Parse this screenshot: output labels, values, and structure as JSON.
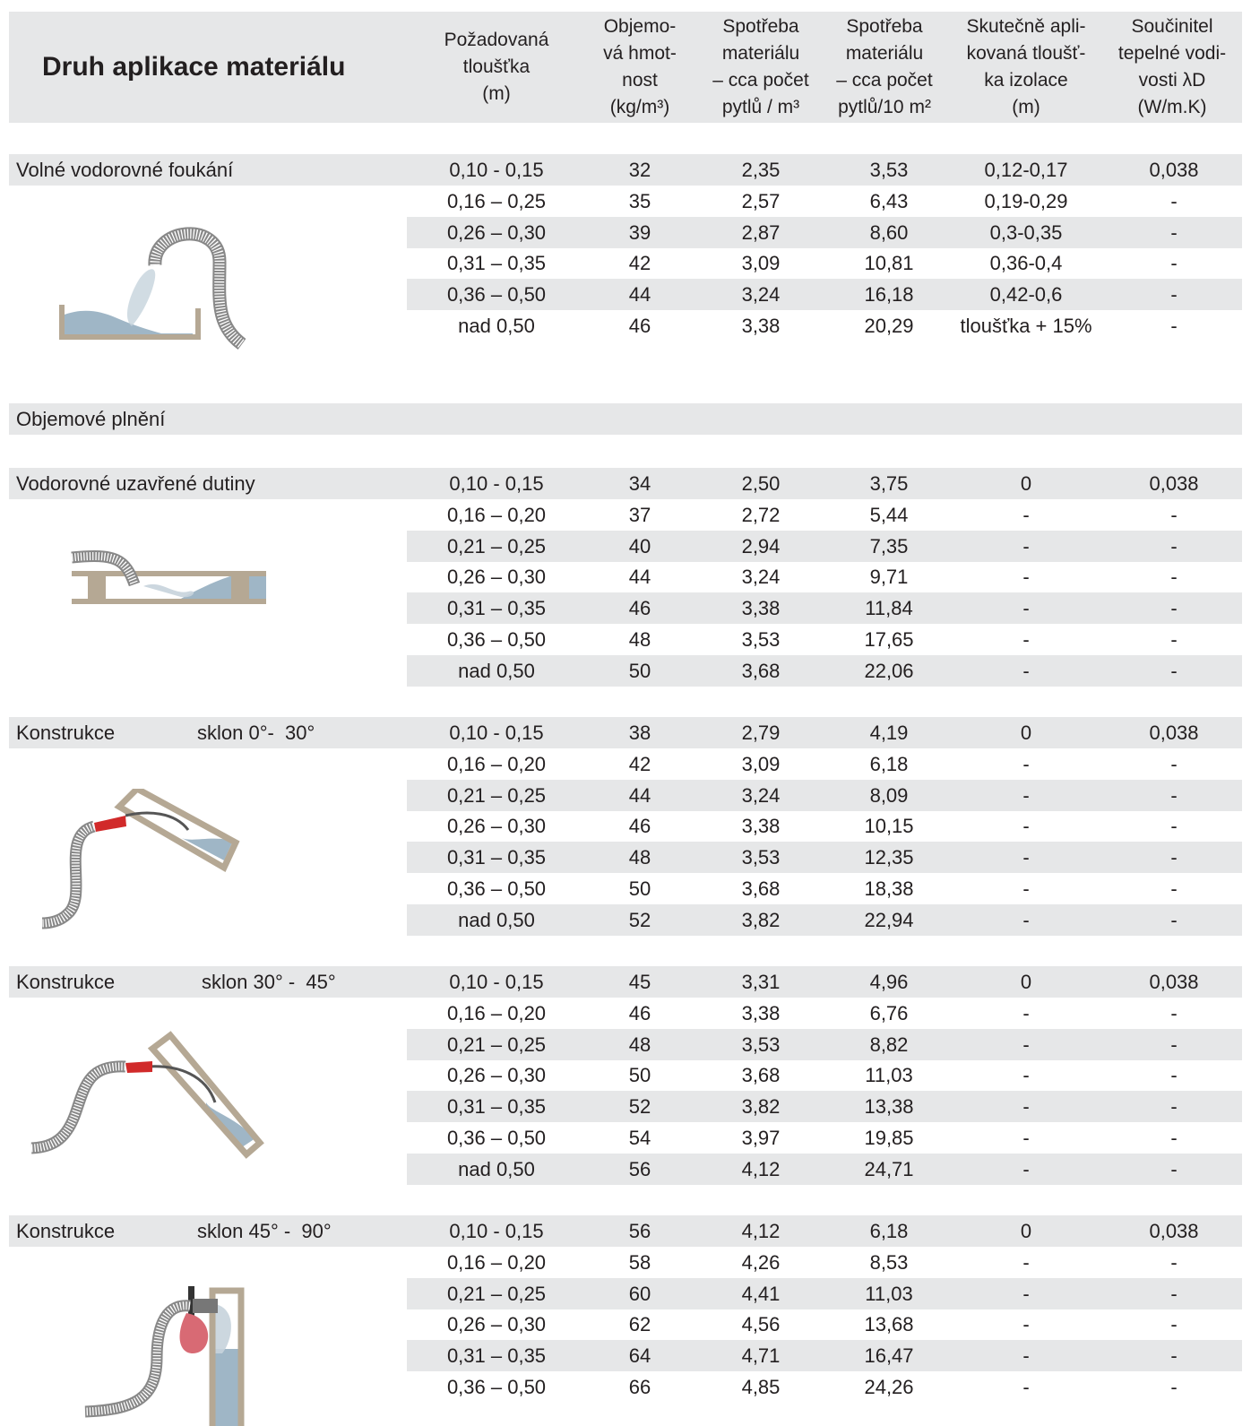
{
  "header": {
    "title": "Druh aplikace materiálu",
    "columns": [
      "Požadovaná\ntloušťka\n(m)",
      "Objemo-\nvá hmot-\nnost\n(kg/m³)",
      "Spotřeba\nmateriálu\n– cca počet\npytlů / m³",
      "Spotřeba\nmateriálu\n– cca počet\npytlů/10 m²",
      "Skutečně apli-\nkovaná tloušť-\nka izolace\n(m)",
      "Součinitel\ntepelné vodi-\nvosti  λD\n(W/m.K)"
    ]
  },
  "sections": [
    {
      "label": "Volné vodorovné foukání",
      "sub": "",
      "illustration": "horizontal-open-blowing-illustration",
      "rows": [
        [
          "0,10 - 0,15",
          "32",
          "2,35",
          "3,53",
          "0,12-0,17",
          "0,038"
        ],
        [
          "0,16 – 0,25",
          "35",
          "2,57",
          "6,43",
          "0,19-0,29",
          "-"
        ],
        [
          "0,26 – 0,30",
          "39",
          "2,87",
          "8,60",
          "0,3-0,35",
          "-"
        ],
        [
          "0,31 – 0,35",
          "42",
          "3,09",
          "10,81",
          "0,36-0,4",
          "-"
        ],
        [
          "0,36 – 0,50",
          "44",
          "3,24",
          "16,18",
          "0,42-0,6",
          "-"
        ],
        [
          "nad 0,50",
          "46",
          "3,38",
          "20,29",
          "tloušťka + 15%",
          "-"
        ]
      ]
    },
    {
      "label": "Objemové plnění",
      "sub": "",
      "rows": []
    },
    {
      "label": "Vodorovné uzavřené dutiny",
      "sub": "",
      "illustration": "horizontal-closed-cavity-illustration",
      "rows": [
        [
          "0,10 - 0,15",
          "34",
          "2,50",
          "3,75",
          "0",
          "0,038"
        ],
        [
          "0,16 – 0,20",
          "37",
          "2,72",
          "5,44",
          "-",
          "-"
        ],
        [
          "0,21 – 0,25",
          "40",
          "2,94",
          "7,35",
          "-",
          "-"
        ],
        [
          "0,26 – 0,30",
          "44",
          "3,24",
          "9,71",
          "-",
          "-"
        ],
        [
          "0,31 – 0,35",
          "46",
          "3,38",
          "11,84",
          "-",
          "-"
        ],
        [
          "0,36 – 0,50",
          "48",
          "3,53",
          "17,65",
          "-",
          "-"
        ],
        [
          "nad 0,50",
          "50",
          "3,68",
          "22,06",
          "-",
          "-"
        ]
      ]
    },
    {
      "label": "Konstrukce",
      "sub": "sklon 0°-  30°",
      "illustration": "slope-0-30-illustration",
      "rows": [
        [
          "0,10 - 0,15",
          "38",
          "2,79",
          "4,19",
          "0",
          "0,038"
        ],
        [
          "0,16 – 0,20",
          "42",
          "3,09",
          "6,18",
          "-",
          "-"
        ],
        [
          "0,21 – 0,25",
          "44",
          "3,24",
          "8,09",
          "-",
          "-"
        ],
        [
          "0,26 – 0,30",
          "46",
          "3,38",
          "10,15",
          "-",
          "-"
        ],
        [
          "0,31 – 0,35",
          "48",
          "3,53",
          "12,35",
          "-",
          "-"
        ],
        [
          "0,36 – 0,50",
          "50",
          "3,68",
          "18,38",
          "-",
          "-"
        ],
        [
          "nad 0,50",
          "52",
          "3,82",
          "22,94",
          "-",
          "-"
        ]
      ]
    },
    {
      "label": "Konstrukce",
      "sub": "sklon 30° -  45°",
      "illustration": "slope-30-45-illustration",
      "rows": [
        [
          "0,10 - 0,15",
          "45",
          "3,31",
          "4,96",
          "0",
          "0,038"
        ],
        [
          "0,16 – 0,20",
          "46",
          "3,38",
          "6,76",
          "-",
          "-"
        ],
        [
          "0,21 – 0,25",
          "48",
          "3,53",
          "8,82",
          "-",
          "-"
        ],
        [
          "0,26 – 0,30",
          "50",
          "3,68",
          "11,03",
          "-",
          "-"
        ],
        [
          "0,31 – 0,35",
          "52",
          "3,82",
          "13,38",
          "-",
          "-"
        ],
        [
          "0,36 – 0,50",
          "54",
          "3,97",
          "19,85",
          "-",
          "-"
        ],
        [
          "nad 0,50",
          "56",
          "4,12",
          "24,71",
          "-",
          "-"
        ]
      ]
    },
    {
      "label": "Konstrukce",
      "sub": "sklon 45° -  90°",
      "illustration": "slope-45-90-illustration",
      "rows": [
        [
          "0,10 - 0,15",
          "56",
          "4,12",
          "6,18",
          "0",
          "0,038"
        ],
        [
          "0,16 – 0,20",
          "58",
          "4,26",
          "8,53",
          "-",
          "-"
        ],
        [
          "0,21 – 0,25",
          "60",
          "4,41",
          "11,03",
          "-",
          "-"
        ],
        [
          "0,26 – 0,30",
          "62",
          "4,56",
          "13,68",
          "-",
          "-"
        ],
        [
          "0,31 – 0,35",
          "64",
          "4,71",
          "16,47",
          "-",
          "-"
        ],
        [
          "0,36 – 0,50",
          "66",
          "4,85",
          "24,26",
          "-",
          "-"
        ]
      ]
    }
  ],
  "colors": {
    "band": "#e6e7e8",
    "text": "#231f20",
    "wall": "#b5a894",
    "insulation": "#9fb6c6",
    "nozzle": "#d12a2a"
  }
}
